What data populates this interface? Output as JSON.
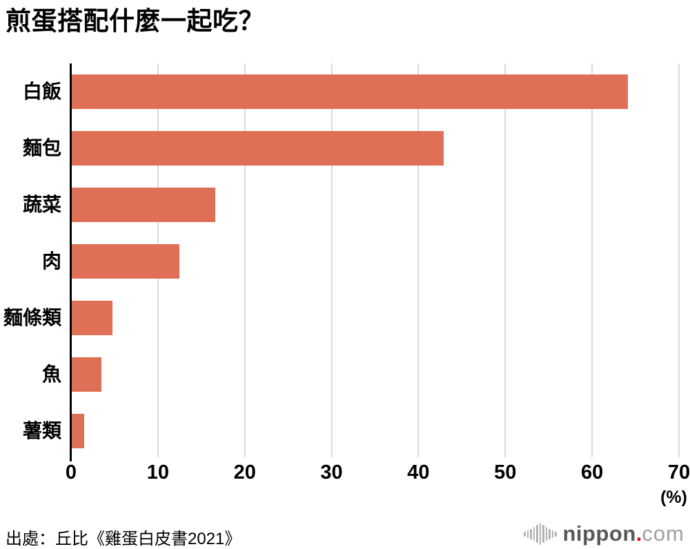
{
  "chart_data": {
    "type": "bar",
    "orientation": "horizontal",
    "title": "煎蛋搭配什麼一起吃？",
    "categories": [
      "白飯",
      "麵包",
      "蔬菜",
      "肉",
      "麵條類",
      "魚",
      "薯類"
    ],
    "values": [
      64.0,
      42.8,
      16.5,
      12.4,
      4.7,
      3.4,
      1.4
    ],
    "xlabel": "",
    "ylabel": "",
    "unit_label": "(%)",
    "xlim": [
      0,
      70
    ],
    "xticks": [
      0,
      10,
      20,
      30,
      40,
      50,
      60,
      70
    ],
    "grid": true,
    "legend": "none",
    "bar_color": "#E07055",
    "grid_color": "#DADADA",
    "axis_color": "#000000"
  },
  "footer": {
    "source": "出處：丘比《雞蛋白皮書2021》",
    "logo": {
      "name": "nippon.com",
      "part_bold": "nippon",
      "dot": ".",
      "part_light": "com",
      "bold_color": "#595757",
      "dot_color": "#E60012",
      "light_color": "#9FA0A0",
      "icon": "soundwave-icon"
    }
  }
}
